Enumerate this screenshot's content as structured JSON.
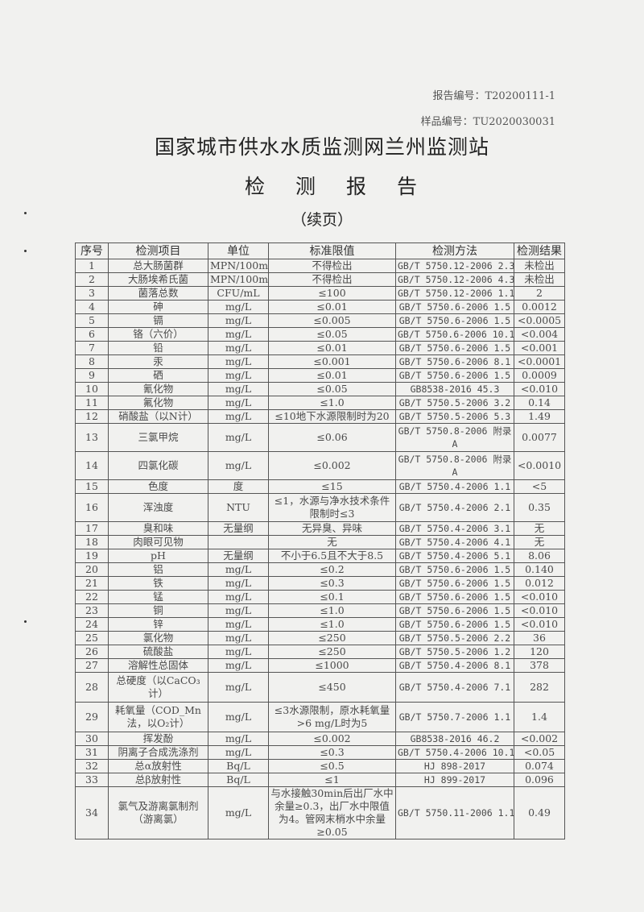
{
  "report_no": "报告编号：T20200111-1",
  "sample_no": "样品编号：TU2020030031",
  "org": "国家城市供水水质监测网兰州监测站",
  "doc_title": "检测报告",
  "continued": "（续页）",
  "columns": [
    "序号",
    "检测项目",
    "单位",
    "标准限值",
    "检测方法",
    "检测结果"
  ],
  "rows": [
    [
      "1",
      "总大肠菌群",
      "MPN/100mL",
      "不得检出",
      "GB/T 5750.12-2006 2.3",
      "未检出"
    ],
    [
      "2",
      "大肠埃希氏菌",
      "MPN/100mL",
      "不得检出",
      "GB/T 5750.12-2006 4.3",
      "未检出"
    ],
    [
      "3",
      "菌落总数",
      "CFU/mL",
      "≤100",
      "GB/T 5750.12-2006 1.1",
      "2"
    ],
    [
      "4",
      "砷",
      "mg/L",
      "≤0.01",
      "GB/T 5750.6-2006 1.5",
      "0.0012"
    ],
    [
      "5",
      "镉",
      "mg/L",
      "≤0.005",
      "GB/T 5750.6-2006 1.5",
      "<0.0005"
    ],
    [
      "6",
      "铬（六价）",
      "mg/L",
      "≤0.05",
      "GB/T 5750.6-2006 10.1",
      "<0.004"
    ],
    [
      "7",
      "铅",
      "mg/L",
      "≤0.01",
      "GB/T 5750.6-2006 1.5",
      "<0.001"
    ],
    [
      "8",
      "汞",
      "mg/L",
      "≤0.001",
      "GB/T 5750.6-2006 8.1",
      "<0.0001"
    ],
    [
      "9",
      "硒",
      "mg/L",
      "≤0.01",
      "GB/T 5750.6-2006 1.5",
      "0.0009"
    ],
    [
      "10",
      "氰化物",
      "mg/L",
      "≤0.05",
      "GB8538-2016 45.3",
      "<0.010"
    ],
    [
      "11",
      "氟化物",
      "mg/L",
      "≤1.0",
      "GB/T 5750.5-2006 3.2",
      "0.14"
    ],
    [
      "12",
      "硝酸盐（以N计）",
      "mg/L",
      "≤10地下水源限制时为20",
      "GB/T 5750.5-2006 5.3",
      "1.49"
    ],
    [
      "13",
      "三氯甲烷",
      "mg/L",
      "≤0.06",
      "GB/T 5750.8-2006 附录A",
      "0.0077"
    ],
    [
      "14",
      "四氯化碳",
      "mg/L",
      "≤0.002",
      "GB/T 5750.8-2006 附录A",
      "<0.0010"
    ],
    [
      "15",
      "色度",
      "度",
      "≤15",
      "GB/T 5750.4-2006 1.1",
      "<5"
    ],
    [
      "16",
      "浑浊度",
      "NTU",
      "≤1，水源与净水技术条件限制时≤3",
      "GB/T 5750.4-2006 2.1",
      "0.35"
    ],
    [
      "17",
      "臭和味",
      "无量纲",
      "无异臭、异味",
      "GB/T 5750.4-2006 3.1",
      "无"
    ],
    [
      "18",
      "肉眼可见物",
      "",
      "无",
      "GB/T 5750.4-2006 4.1",
      "无"
    ],
    [
      "19",
      "pH",
      "无量纲",
      "不小于6.5且不大于8.5",
      "GB/T 5750.4-2006 5.1",
      "8.06"
    ],
    [
      "20",
      "铝",
      "mg/L",
      "≤0.2",
      "GB/T 5750.6-2006 1.5",
      "0.140"
    ],
    [
      "21",
      "铁",
      "mg/L",
      "≤0.3",
      "GB/T 5750.6-2006 1.5",
      "0.012"
    ],
    [
      "22",
      "锰",
      "mg/L",
      "≤0.1",
      "GB/T 5750.6-2006 1.5",
      "<0.010"
    ],
    [
      "23",
      "铜",
      "mg/L",
      "≤1.0",
      "GB/T 5750.6-2006 1.5",
      "<0.010"
    ],
    [
      "24",
      "锌",
      "mg/L",
      "≤1.0",
      "GB/T 5750.6-2006 1.5",
      "<0.010"
    ],
    [
      "25",
      "氯化物",
      "mg/L",
      "≤250",
      "GB/T 5750.5-2006 2.2",
      "36"
    ],
    [
      "26",
      "硫酸盐",
      "mg/L",
      "≤250",
      "GB/T 5750.5-2006 1.2",
      "120"
    ],
    [
      "27",
      "溶解性总固体",
      "mg/L",
      "≤1000",
      "GB/T 5750.4-2006 8.1",
      "378"
    ],
    [
      "28",
      "总硬度（以CaCO₃计）",
      "mg/L",
      "≤450",
      "GB/T 5750.4-2006 7.1",
      "282"
    ],
    [
      "29",
      "耗氧量（COD_Mn法，以O₂计）",
      "mg/L",
      "≤3水源限制，原水耗氧量>6 mg/L时为5",
      "GB/T 5750.7-2006 1.1",
      "1.4"
    ],
    [
      "30",
      "挥发酚",
      "mg/L",
      "≤0.002",
      "GB8538-2016 46.2",
      "<0.002"
    ],
    [
      "31",
      "阴离子合成洗涤剂",
      "mg/L",
      "≤0.3",
      "GB/T 5750.4-2006 10.1",
      "<0.05"
    ],
    [
      "32",
      "总α放射性",
      "Bq/L",
      "≤0.5",
      "HJ 898-2017",
      "0.074"
    ],
    [
      "33",
      "总β放射性",
      "Bq/L",
      "≤1",
      "HJ 899-2017",
      "0.096"
    ],
    [
      "34",
      "氯气及游离氯制剂（游离氯）",
      "mg/L",
      "与水接触30min后出厂水中余量≥0.3，出厂水中限值为4。管网末梢水中余量≥0.05",
      "GB/T 5750.11-2006 1.1",
      "0.49"
    ]
  ]
}
